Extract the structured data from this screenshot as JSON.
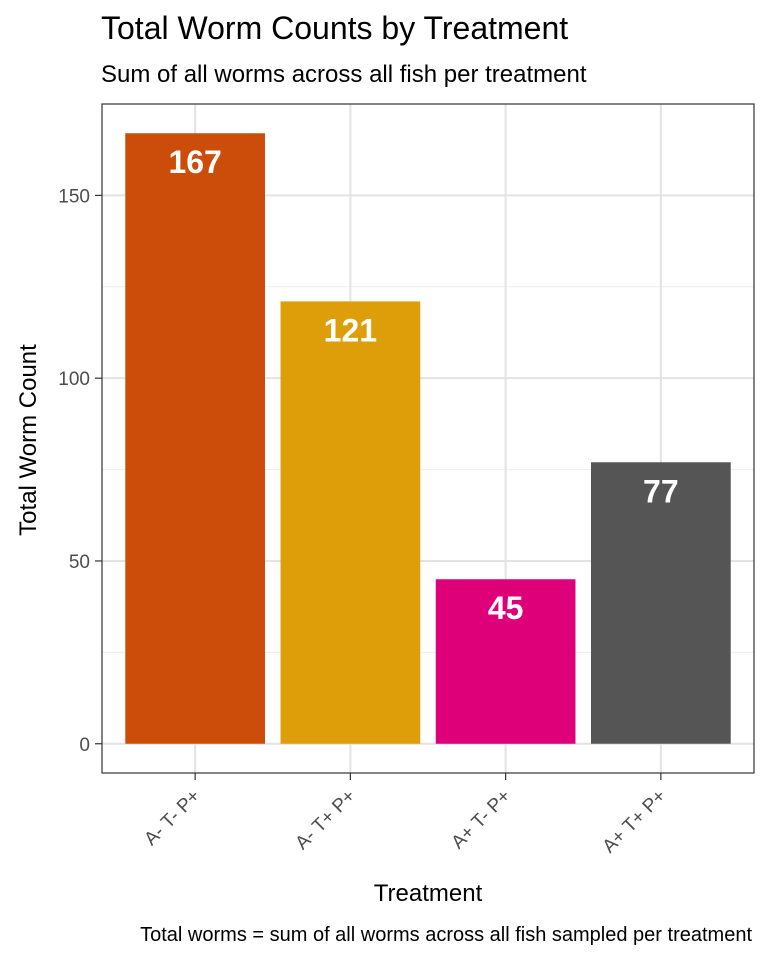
{
  "chart_data": {
    "type": "bar",
    "title": "Total Worm Counts by Treatment",
    "subtitle": "Sum of all worms across all fish per treatment",
    "xlabel": "Treatment",
    "ylabel": "Total Worm Count",
    "caption": "Total worms = sum of all worms across all fish sampled per treatment",
    "categories": [
      "A- T- P+",
      "A- T+ P+",
      "A+ T- P+",
      "A+ T+ P+"
    ],
    "values": [
      167,
      121,
      45,
      77
    ],
    "colors": [
      "#CC4C0A",
      "#DE9E0A",
      "#DE0079",
      "#555555"
    ],
    "ylim": [
      -8,
      175
    ],
    "yticks": [
      0,
      50,
      100,
      150
    ],
    "grid": true,
    "legend": "none"
  }
}
